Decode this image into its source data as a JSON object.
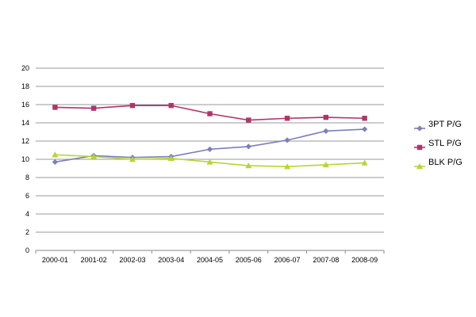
{
  "chart_data": {
    "type": "line",
    "title": "",
    "xlabel": "",
    "ylabel": "",
    "categories": [
      "2000-01",
      "2001-02",
      "2002-03",
      "2003-04",
      "2004-05",
      "2005-06",
      "2006-07",
      "2007-08",
      "2008-09"
    ],
    "ylim": [
      0,
      20
    ],
    "yticks": [
      "0",
      "2",
      "4",
      "6",
      "8",
      "10",
      "12",
      "14",
      "16",
      "18",
      "20"
    ],
    "grid": true,
    "legend_position": "right",
    "series": [
      {
        "name": "3PT P/G",
        "color": "#7b7fbf",
        "marker": "diamond",
        "values": [
          9.7,
          10.4,
          10.2,
          10.3,
          11.1,
          11.4,
          12.1,
          13.1,
          13.3
        ]
      },
      {
        "name": "STL  P/G",
        "color": "#b0346b",
        "marker": "square",
        "values": [
          15.7,
          15.6,
          15.9,
          15.9,
          15.0,
          14.3,
          14.5,
          14.6,
          14.5
        ]
      },
      {
        "name": "BLK P/G",
        "color": "#b9d432",
        "marker": "triangle",
        "values": [
          10.5,
          10.3,
          10.0,
          10.1,
          9.7,
          9.3,
          9.2,
          9.4,
          9.6
        ]
      }
    ]
  }
}
